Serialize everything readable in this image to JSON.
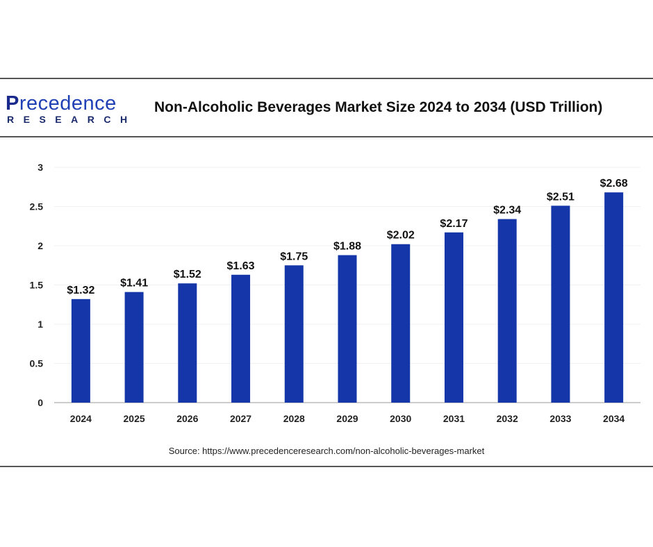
{
  "logo": {
    "name_first": "P",
    "name_rest": "recedence",
    "sub": "RESEARCH"
  },
  "chart_data": {
    "type": "bar",
    "title": "Non-Alcoholic Beverages Market Size 2024 to 2034 (USD Trillion)",
    "categories": [
      "2024",
      "2025",
      "2026",
      "2027",
      "2028",
      "2029",
      "2030",
      "2031",
      "2032",
      "2033",
      "2034"
    ],
    "values": [
      1.32,
      1.41,
      1.52,
      1.63,
      1.75,
      1.88,
      2.02,
      2.17,
      2.34,
      2.51,
      2.68
    ],
    "data_labels": [
      "$1.32",
      "$1.41",
      "$1.52",
      "$1.63",
      "$1.75",
      "$1.88",
      "$2.02",
      "$2.17",
      "$2.34",
      "$2.51",
      "$2.68"
    ],
    "yticks": [
      "0",
      "0.5",
      "1",
      "1.5",
      "2",
      "2.5",
      "3"
    ],
    "ylim": [
      0,
      3
    ],
    "xlabel": "",
    "ylabel": "",
    "grid": true,
    "bar_color": "#1436a8"
  },
  "source": "Source: https://www.precedenceresearch.com/non-alcoholic-beverages-market"
}
